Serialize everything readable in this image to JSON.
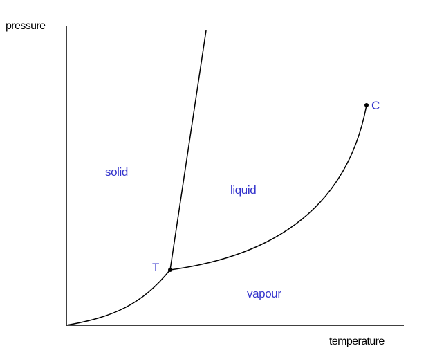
{
  "axes": {
    "y_label": "pressure",
    "x_label": "temperature"
  },
  "regions": {
    "solid": "solid",
    "liquid": "liquid",
    "vapour": "vapour"
  },
  "points": {
    "triple_label": "T",
    "critical_label": "C"
  },
  "colors": {
    "label_color": "#3333cc",
    "line_color": "#000000"
  }
}
